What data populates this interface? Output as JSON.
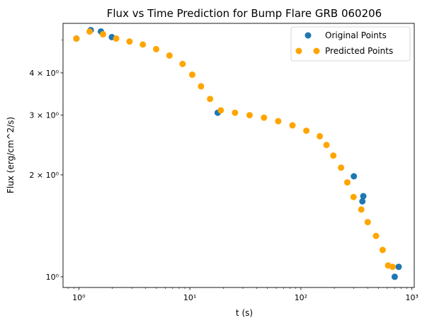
{
  "chart_data": {
    "type": "scatter",
    "title": "Flux vs Time Prediction for Bump Flare GRB 060206",
    "xlabel": "t (s)",
    "ylabel": "Flux (erg/cm^2/s)",
    "xscale": "log",
    "yscale": "log",
    "xlim": [
      0.72,
      1050
    ],
    "ylim": [
      0.93,
      5.6
    ],
    "x_ticks": [
      {
        "value": 1,
        "label": "10⁰"
      },
      {
        "value": 10,
        "label": "10¹"
      },
      {
        "value": 100,
        "label": "10²"
      },
      {
        "value": 1000,
        "label": "10³"
      }
    ],
    "y_ticks": [
      {
        "value": 1,
        "label": "10⁰"
      },
      {
        "value": 2,
        "label": "2 × 10⁰"
      },
      {
        "value": 3,
        "label": "3 × 10⁰"
      },
      {
        "value": 4,
        "label": "4 × 10⁰"
      }
    ],
    "grid": false,
    "legend_position": "top-right",
    "series": [
      {
        "name": "Original Points",
        "color": "#1f77b4",
        "x": [
          0.95,
          1.28,
          1.58,
          1.98,
          17.8,
          300,
          358,
          365,
          700,
          760
        ],
        "y": [
          5.05,
          5.35,
          5.3,
          5.1,
          3.05,
          1.98,
          1.67,
          1.73,
          1.0,
          1.07
        ]
      },
      {
        "name": "Predicted Points",
        "color": "#ffa500",
        "x": [
          0.95,
          1.25,
          1.65,
          2.17,
          2.86,
          3.77,
          4.97,
          6.55,
          8.6,
          10.5,
          12.6,
          15.2,
          19.0,
          25.5,
          34.5,
          46.5,
          62.5,
          84.0,
          112,
          148,
          170,
          196,
          230,
          262,
          298,
          350,
          400,
          475,
          545,
          610,
          670
        ],
        "y": [
          5.05,
          5.3,
          5.2,
          5.05,
          4.95,
          4.85,
          4.7,
          4.5,
          4.25,
          3.95,
          3.65,
          3.35,
          3.1,
          3.05,
          3.0,
          2.95,
          2.88,
          2.8,
          2.7,
          2.6,
          2.45,
          2.28,
          2.1,
          1.9,
          1.72,
          1.58,
          1.45,
          1.32,
          1.2,
          1.08,
          1.07
        ]
      }
    ]
  }
}
